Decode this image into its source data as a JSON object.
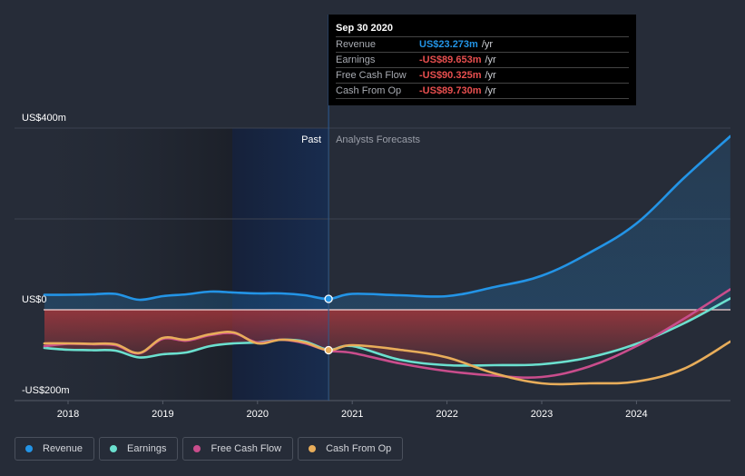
{
  "tooltip": {
    "date": "Sep 30 2020",
    "rows": [
      {
        "label": "Revenue",
        "value": "US$23.273m",
        "unit": "/yr",
        "color": "#2394e6"
      },
      {
        "label": "Earnings",
        "value": "-US$89.653m",
        "unit": "/yr",
        "color": "#e84f4f"
      },
      {
        "label": "Free Cash Flow",
        "value": "-US$90.325m",
        "unit": "/yr",
        "color": "#e84f4f"
      },
      {
        "label": "Cash From Op",
        "value": "-US$89.730m",
        "unit": "/yr",
        "color": "#e84f4f"
      }
    ]
  },
  "legend": [
    {
      "label": "Revenue",
      "color": "#2394e6"
    },
    {
      "label": "Earnings",
      "color": "#6be0cf"
    },
    {
      "label": "Free Cash Flow",
      "color": "#c94d8c"
    },
    {
      "label": "Cash From Op",
      "color": "#e8ad5a"
    }
  ],
  "chart_data": {
    "type": "line",
    "title": "",
    "xlabel": "",
    "ylabel": "",
    "ylim": [
      -200,
      400
    ],
    "xlim": [
      2017.75,
      2024.99
    ],
    "y_ticks": [
      {
        "value": 400,
        "label": "US$400m"
      },
      {
        "value": 0,
        "label": "US$0"
      },
      {
        "value": -200,
        "label": "-US$200m"
      }
    ],
    "x_ticks": [
      {
        "value": 2018,
        "label": "2018"
      },
      {
        "value": 2019,
        "label": "2019"
      },
      {
        "value": 2020,
        "label": "2020"
      },
      {
        "value": 2021,
        "label": "2021"
      },
      {
        "value": 2022,
        "label": "2022"
      },
      {
        "value": 2023,
        "label": "2023"
      },
      {
        "value": 2024,
        "label": "2024"
      }
    ],
    "past_label": "Past",
    "forecast_label": "Analysts Forecasts",
    "divider_x": 2020.75,
    "grid": true,
    "legend_position": "bottom-left",
    "series": [
      {
        "name": "Revenue",
        "color": "#2394e6",
        "x": [
          2017.75,
          2018.0,
          2018.25,
          2018.5,
          2018.75,
          2019.0,
          2019.25,
          2019.5,
          2019.75,
          2020.0,
          2020.25,
          2020.5,
          2020.75,
          2021.0,
          2021.5,
          2022.0,
          2022.5,
          2023.0,
          2023.5,
          2024.0,
          2024.5,
          2024.99
        ],
        "y": [
          33,
          33,
          34,
          35,
          22,
          30,
          34,
          40,
          38,
          36,
          36,
          32,
          24,
          35,
          32,
          30,
          50,
          75,
          125,
          190,
          290,
          382
        ]
      },
      {
        "name": "Earnings",
        "color": "#6be0cf",
        "x": [
          2017.75,
          2018.0,
          2018.25,
          2018.5,
          2018.75,
          2019.0,
          2019.25,
          2019.5,
          2019.75,
          2020.0,
          2020.25,
          2020.5,
          2020.75,
          2021.0,
          2021.5,
          2022.0,
          2022.5,
          2023.0,
          2023.5,
          2024.0,
          2024.5,
          2024.99
        ],
        "y": [
          -84,
          -88,
          -89,
          -90,
          -105,
          -98,
          -94,
          -80,
          -74,
          -72,
          -66,
          -70,
          -88,
          -80,
          -110,
          -122,
          -122,
          -120,
          -105,
          -75,
          -30,
          25
        ]
      },
      {
        "name": "Free Cash Flow",
        "color": "#c94d8c",
        "x": [
          2017.75,
          2018.0,
          2018.25,
          2018.5,
          2018.75,
          2019.0,
          2019.25,
          2019.5,
          2019.75,
          2020.0,
          2020.25,
          2020.5,
          2020.75,
          2021.0,
          2021.5,
          2022.0,
          2022.5,
          2023.0,
          2023.5,
          2024.0,
          2024.5,
          2024.99
        ],
        "y": [
          -80,
          -75,
          -76,
          -78,
          -96,
          -64,
          -68,
          -56,
          -52,
          -72,
          -66,
          -74,
          -90,
          -95,
          -118,
          -135,
          -145,
          -148,
          -125,
          -80,
          -20,
          45
        ]
      },
      {
        "name": "Cash From Op",
        "color": "#e8ad5a",
        "x": [
          2017.75,
          2018.0,
          2018.25,
          2018.5,
          2018.75,
          2019.0,
          2019.25,
          2019.5,
          2019.75,
          2020.0,
          2020.25,
          2020.5,
          2020.75,
          2021.0,
          2021.5,
          2022.0,
          2022.5,
          2023.0,
          2023.5,
          2024.0,
          2024.5,
          2024.99
        ],
        "y": [
          -74,
          -74,
          -75,
          -76,
          -95,
          -62,
          -66,
          -54,
          -50,
          -74,
          -66,
          -72,
          -89,
          -78,
          -88,
          -105,
          -140,
          -162,
          -162,
          -158,
          -130,
          -70
        ]
      }
    ]
  }
}
